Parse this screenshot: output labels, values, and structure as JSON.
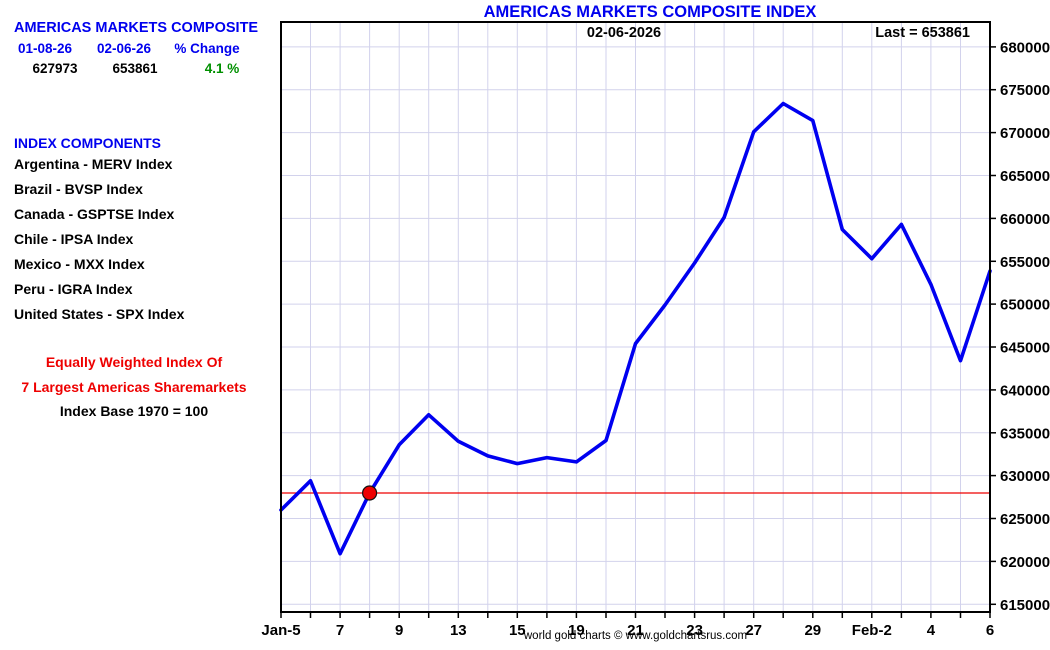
{
  "page_title": "AMERICAS MARKETS COMPOSITE INDEX",
  "summary_panel": {
    "heading": "AMERICAS MARKETS COMPOSITE",
    "columns": [
      "01-08-26",
      "02-06-26",
      "% Change"
    ],
    "values": [
      "627973",
      "653861",
      "4.1 %"
    ]
  },
  "components": {
    "heading": "INDEX COMPONENTS",
    "items": [
      "Argentina - MERV Index",
      "Brazil - BVSP Index",
      "Canada - GSPTSE Index",
      "Chile - IPSA Index",
      "Mexico - MXX Index",
      "Peru - IGRA Index",
      "United States - SPX Index"
    ]
  },
  "notes": {
    "weighting_line1": "Equally Weighted Index Of",
    "weighting_line2": "7 Largest Americas Sharemarkets",
    "base_note": "Index Base 1970 = 100"
  },
  "chart_annotations": {
    "date_label": "02-06-2026",
    "last_label": "Last = 653861"
  },
  "caption": "world gold charts © www.goldchartsrus.com",
  "colors": {
    "accent_blue": "#0000ee",
    "line_blue": "#0000f0",
    "red": "#ee0000",
    "green": "#009000",
    "grid": "#d2d2ec",
    "border": "#000000"
  },
  "chart_data": {
    "type": "line",
    "title": "AMERICAS MARKETS COMPOSITE INDEX",
    "xlabel": "",
    "ylabel": "",
    "x": [
      "Jan-5",
      "Jan-6",
      "Jan-7",
      "Jan-8",
      "Jan-9",
      "Jan-12",
      "Jan-13",
      "Jan-14",
      "Jan-15",
      "Jan-16",
      "Jan-19",
      "Jan-20",
      "Jan-21",
      "Jan-22",
      "Jan-23",
      "Jan-26",
      "Jan-27",
      "Jan-28",
      "Jan-29",
      "Jan-30",
      "Feb-2",
      "Feb-3",
      "Feb-4",
      "Feb-5",
      "Feb-6"
    ],
    "values": [
      626000,
      629400,
      620900,
      627973,
      633600,
      637100,
      634000,
      632300,
      631400,
      632100,
      631600,
      634100,
      645400,
      649900,
      654800,
      660100,
      670100,
      673400,
      671400,
      658700,
      655300,
      659300,
      652300,
      643400,
      653861
    ],
    "x_tick_labels": [
      "Jan-5",
      "7",
      "9",
      "13",
      "15",
      "19",
      "21",
      "23",
      "27",
      "29",
      "Feb-2",
      "4",
      "6"
    ],
    "x_tick_indices": [
      0,
      2,
      4,
      6,
      8,
      10,
      12,
      14,
      16,
      18,
      20,
      22,
      24
    ],
    "y_ticks": [
      615000,
      620000,
      625000,
      630000,
      635000,
      640000,
      645000,
      650000,
      655000,
      660000,
      665000,
      670000,
      675000,
      680000
    ],
    "ylim": [
      614100,
      682900
    ],
    "grid": true,
    "legend": "none",
    "reference_value": 627973,
    "marker": {
      "date": "01-08-26",
      "index": 3,
      "value": 627973
    },
    "last_value": 653861
  }
}
